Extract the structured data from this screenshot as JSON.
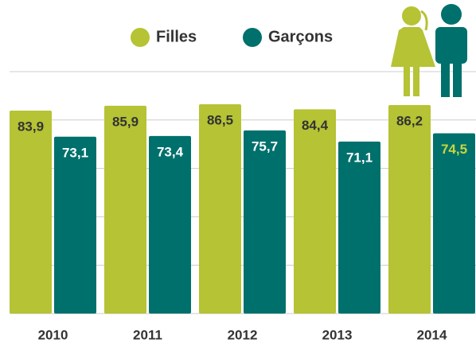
{
  "chart_data": {
    "type": "bar",
    "categories": [
      "2010",
      "2011",
      "2012",
      "2013",
      "2014"
    ],
    "series": [
      {
        "name": "Filles",
        "color": "#b5c334",
        "label_color": "#333333",
        "values": [
          83.9,
          85.9,
          86.5,
          84.4,
          86.2
        ],
        "value_labels": [
          "83,9",
          "85,9",
          "86,5",
          "84,4",
          "86,2"
        ]
      },
      {
        "name": "Garçons",
        "color": "#00706c",
        "label_color": "#ffffff",
        "highlight_label": {
          "index": 4,
          "color": "#c9d63c"
        },
        "values": [
          73.1,
          73.4,
          75.7,
          71.1,
          74.5
        ],
        "value_labels": [
          "73,1",
          "73,4",
          "75,7",
          "71,1",
          "74,5"
        ]
      }
    ],
    "ylim": [
      0,
      100
    ],
    "yticks": [
      0,
      20,
      40,
      60,
      80,
      100
    ],
    "grid": true,
    "legend": "top"
  }
}
